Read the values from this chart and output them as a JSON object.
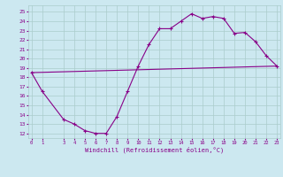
{
  "title": "",
  "xlabel": "Windchill (Refroidissement éolien,°C)",
  "bg_color": "#cce8f0",
  "grid_color": "#aacccc",
  "line_color": "#880088",
  "x_ticks": [
    0,
    1,
    3,
    4,
    5,
    6,
    7,
    8,
    9,
    10,
    11,
    12,
    13,
    14,
    15,
    16,
    17,
    18,
    19,
    20,
    21,
    22,
    23
  ],
  "y_ticks": [
    12,
    13,
    14,
    15,
    16,
    17,
    18,
    19,
    20,
    21,
    22,
    23,
    24,
    25
  ],
  "xlim": [
    -0.3,
    23.3
  ],
  "ylim": [
    11.5,
    25.7
  ],
  "line1_x": [
    0,
    1,
    3,
    4,
    5,
    6,
    7,
    8,
    9,
    10,
    11,
    12,
    13,
    14,
    15,
    16,
    17,
    18,
    19,
    20,
    21,
    22,
    23
  ],
  "line1_y": [
    18.5,
    16.5,
    13.5,
    13.0,
    12.3,
    12.0,
    12.0,
    13.8,
    16.5,
    19.2,
    21.5,
    23.2,
    23.2,
    24.0,
    24.8,
    24.3,
    24.5,
    24.3,
    22.7,
    22.8,
    21.8,
    20.3,
    19.2
  ],
  "line2_x": [
    0,
    23
  ],
  "line2_y": [
    18.5,
    19.2
  ]
}
